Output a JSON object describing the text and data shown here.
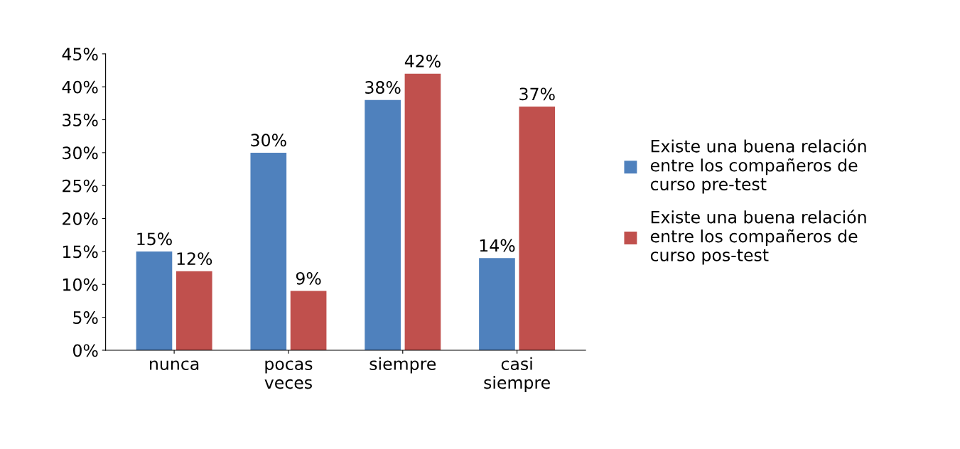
{
  "chart_data": {
    "type": "bar",
    "categories": [
      "nunca",
      "pocas\nveces",
      "siempre",
      "casi\nsiempre"
    ],
    "series": [
      {
        "name": "Existe una buena relación\nentre los compañeros de\ncurso pre-test",
        "color": "#4f81bd",
        "values": [
          15,
          30,
          38,
          14
        ],
        "value_labels": [
          "15%",
          "30%",
          "38%",
          "14%"
        ]
      },
      {
        "name": "Existe una buena relación\nentre los compañeros de\ncurso pos-test",
        "color": "#c0504d",
        "values": [
          12,
          9,
          42,
          37
        ],
        "value_labels": [
          "12%",
          "9%",
          "42%",
          "37%"
        ]
      }
    ],
    "ylim": [
      0,
      45
    ],
    "yticks": [
      {
        "value": 0,
        "label": "0%"
      },
      {
        "value": 5,
        "label": "5%"
      },
      {
        "value": 10,
        "label": "10%"
      },
      {
        "value": 15,
        "label": "15%"
      },
      {
        "value": 20,
        "label": "20%"
      },
      {
        "value": 25,
        "label": "25%"
      },
      {
        "value": 30,
        "label": "30%"
      },
      {
        "value": 35,
        "label": "35%"
      },
      {
        "value": 40,
        "label": "40%"
      },
      {
        "value": 45,
        "label": "45%"
      }
    ],
    "grid": false,
    "legend": "right"
  }
}
